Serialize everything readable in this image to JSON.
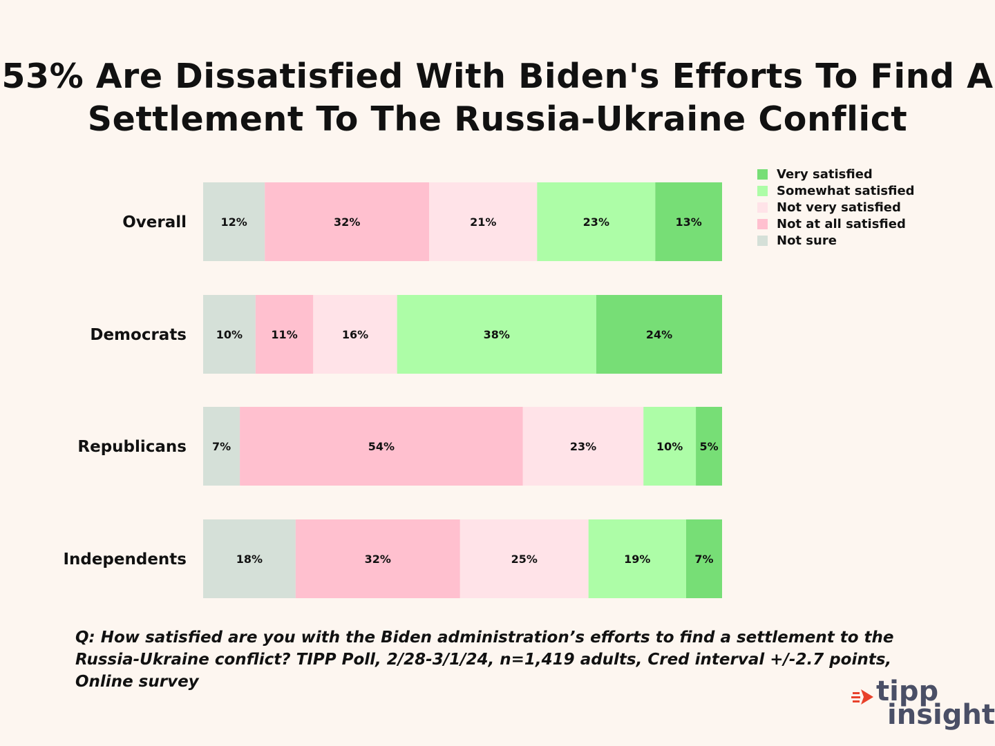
{
  "chart_data": {
    "type": "bar",
    "orientation": "horizontal",
    "stacked": true,
    "title_lines": [
      "53% Are Dissatisfied With Biden's Efforts To Find A",
      "Settlement To The Russia-Ukraine Conflict"
    ],
    "categories": [
      "Overall",
      "Democrats",
      "Republicans",
      "Independents"
    ],
    "series": [
      {
        "name": "Not sure",
        "color": "#d5e0d8",
        "values": [
          12,
          10,
          7,
          18
        ]
      },
      {
        "name": "Not at all satisfied",
        "color": "#ffc0cf",
        "values": [
          32,
          11,
          54,
          32
        ]
      },
      {
        "name": "Not very satisfied",
        "color": "#ffe3e8",
        "values": [
          21,
          16,
          23,
          25
        ]
      },
      {
        "name": "Somewhat satisfied",
        "color": "#adfda7",
        "values": [
          23,
          38,
          10,
          19
        ]
      },
      {
        "name": "Very satisfied",
        "color": "#77de76",
        "values": [
          13,
          24,
          5,
          7
        ]
      }
    ],
    "legend_order": [
      "Very satisfied",
      "Somewhat satisfied",
      "Not very satisfied",
      "Not at all satisfied",
      "Not sure"
    ],
    "value_suffix": "%",
    "legend_position": "top-right"
  },
  "footnote": "Q:  How satisfied are you with the Biden administration’s efforts to find a settlement to the Russia-Ukraine conflict? TIPP Poll, 2/28-3/1/24, n=1,419 adults, Cred interval +/-2.7 points, Online survey",
  "logo": {
    "line1": "tipp",
    "line2": "insights",
    "arrow_color": "#e8412b",
    "text_color": "#4a4f66"
  }
}
